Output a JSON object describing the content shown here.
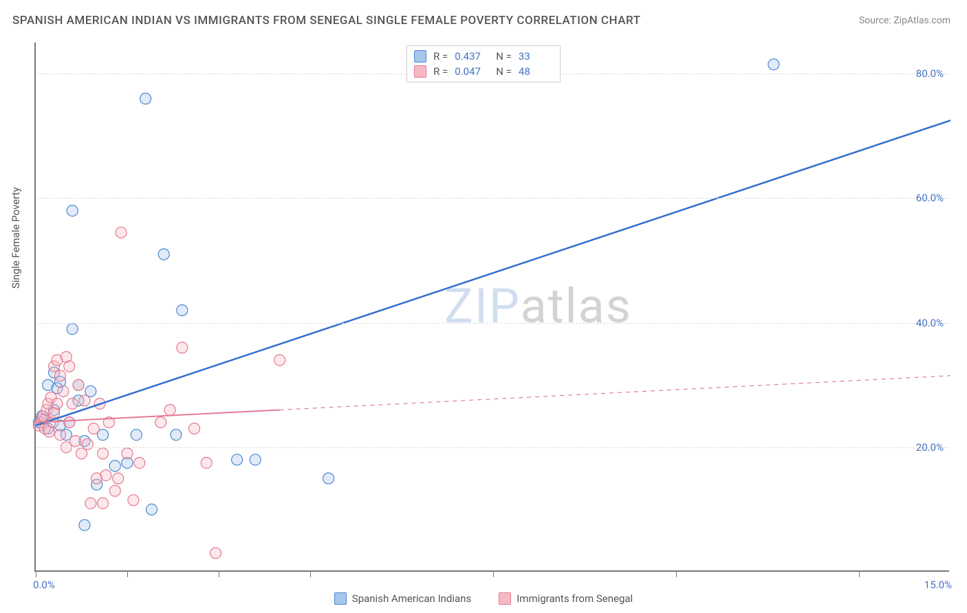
{
  "title": "SPANISH AMERICAN INDIAN VS IMMIGRANTS FROM SENEGAL SINGLE FEMALE POVERTY CORRELATION CHART",
  "source": "Source: ZipAtlas.com",
  "ylabel": "Single Female Poverty",
  "watermark": {
    "part1": "ZIP",
    "part2": "atlas"
  },
  "chart": {
    "type": "scatter-with-regression",
    "background_color": "#ffffff",
    "grid_color": "#dddddd",
    "axis_color": "#777777",
    "tick_label_color": "#4472c4",
    "tick_fontsize": 15,
    "xlim": [
      0.0,
      15.0
    ],
    "ylim": [
      0.0,
      85.0
    ],
    "yticks": [
      20.0,
      40.0,
      60.0,
      80.0
    ],
    "ytick_labels": [
      "20.0%",
      "40.0%",
      "60.0%",
      "80.0%"
    ],
    "xtick_positions": [
      0.0,
      1.5,
      3.0,
      4.5,
      7.5,
      10.5,
      13.5
    ],
    "xaxis_end_labels": {
      "left": "0.0%",
      "right": "15.0%"
    },
    "marker_radius": 8,
    "marker_stroke_width": 1.2,
    "marker_fill_opacity": 0.35,
    "series": [
      {
        "name": "Spanish American Indians",
        "color_fill": "#a8c6ec",
        "color_stroke": "#4a86d0",
        "R": "0.437",
        "N": "33",
        "regression": {
          "x1": 0.0,
          "y1": 23.5,
          "x2": 15.0,
          "y2": 72.5,
          "solid_until_x": 15.0,
          "dashed": false,
          "stroke": "#2f6fd0",
          "width": 2.5
        },
        "points": [
          [
            0.05,
            24.0
          ],
          [
            0.1,
            25.0
          ],
          [
            0.15,
            24.5
          ],
          [
            0.2,
            23.0
          ],
          [
            0.2,
            30.0
          ],
          [
            0.3,
            32.0
          ],
          [
            0.3,
            26.0
          ],
          [
            0.35,
            29.5
          ],
          [
            0.4,
            23.5
          ],
          [
            0.4,
            30.5
          ],
          [
            0.5,
            22.0
          ],
          [
            0.55,
            24.0
          ],
          [
            0.6,
            58.0
          ],
          [
            0.6,
            39.0
          ],
          [
            0.7,
            30.0
          ],
          [
            0.7,
            27.5
          ],
          [
            0.8,
            21.0
          ],
          [
            0.8,
            7.5
          ],
          [
            0.9,
            29.0
          ],
          [
            1.0,
            14.0
          ],
          [
            1.1,
            22.0
          ],
          [
            1.3,
            17.0
          ],
          [
            1.5,
            17.5
          ],
          [
            1.65,
            22.0
          ],
          [
            1.8,
            76.0
          ],
          [
            1.9,
            10.0
          ],
          [
            2.1,
            51.0
          ],
          [
            2.3,
            22.0
          ],
          [
            2.4,
            42.0
          ],
          [
            3.3,
            18.0
          ],
          [
            3.6,
            18.0
          ],
          [
            4.8,
            15.0
          ],
          [
            12.1,
            81.5
          ]
        ]
      },
      {
        "name": "Immigrants from Senegal",
        "color_fill": "#f6b9c4",
        "color_stroke": "#e37a93",
        "R": "0.047",
        "N": "48",
        "regression": {
          "x1": 0.0,
          "y1": 24.0,
          "x2": 15.0,
          "y2": 31.5,
          "solid_until_x": 4.0,
          "dashed": true,
          "stroke": "#e37a93",
          "width": 2
        },
        "points": [
          [
            0.05,
            23.5
          ],
          [
            0.08,
            24.0
          ],
          [
            0.1,
            24.5
          ],
          [
            0.12,
            25.0
          ],
          [
            0.15,
            23.0
          ],
          [
            0.18,
            26.0
          ],
          [
            0.2,
            27.0
          ],
          [
            0.22,
            22.5
          ],
          [
            0.25,
            28.0
          ],
          [
            0.28,
            24.0
          ],
          [
            0.3,
            33.0
          ],
          [
            0.3,
            25.5
          ],
          [
            0.35,
            34.0
          ],
          [
            0.35,
            27.0
          ],
          [
            0.4,
            22.0
          ],
          [
            0.4,
            31.5
          ],
          [
            0.45,
            29.0
          ],
          [
            0.5,
            34.5
          ],
          [
            0.5,
            20.0
          ],
          [
            0.55,
            24.0
          ],
          [
            0.55,
            33.0
          ],
          [
            0.6,
            27.0
          ],
          [
            0.65,
            21.0
          ],
          [
            0.7,
            30.0
          ],
          [
            0.75,
            19.0
          ],
          [
            0.8,
            27.5
          ],
          [
            0.85,
            20.5
          ],
          [
            0.9,
            11.0
          ],
          [
            0.95,
            23.0
          ],
          [
            1.0,
            15.0
          ],
          [
            1.05,
            27.0
          ],
          [
            1.1,
            19.0
          ],
          [
            1.1,
            11.0
          ],
          [
            1.15,
            15.5
          ],
          [
            1.2,
            24.0
          ],
          [
            1.3,
            13.0
          ],
          [
            1.35,
            15.0
          ],
          [
            1.4,
            54.5
          ],
          [
            1.5,
            19.0
          ],
          [
            1.6,
            11.5
          ],
          [
            1.7,
            17.5
          ],
          [
            2.05,
            24.0
          ],
          [
            2.2,
            26.0
          ],
          [
            2.4,
            36.0
          ],
          [
            2.6,
            23.0
          ],
          [
            2.8,
            17.5
          ],
          [
            2.95,
            3.0
          ],
          [
            4.0,
            34.0
          ]
        ]
      }
    ]
  },
  "legend_bottom": [
    {
      "label": "Spanish American Indians",
      "fill": "#a8c6ec",
      "stroke": "#4a86d0"
    },
    {
      "label": "Immigrants from Senegal",
      "fill": "#f6b9c4",
      "stroke": "#e37a93"
    }
  ]
}
